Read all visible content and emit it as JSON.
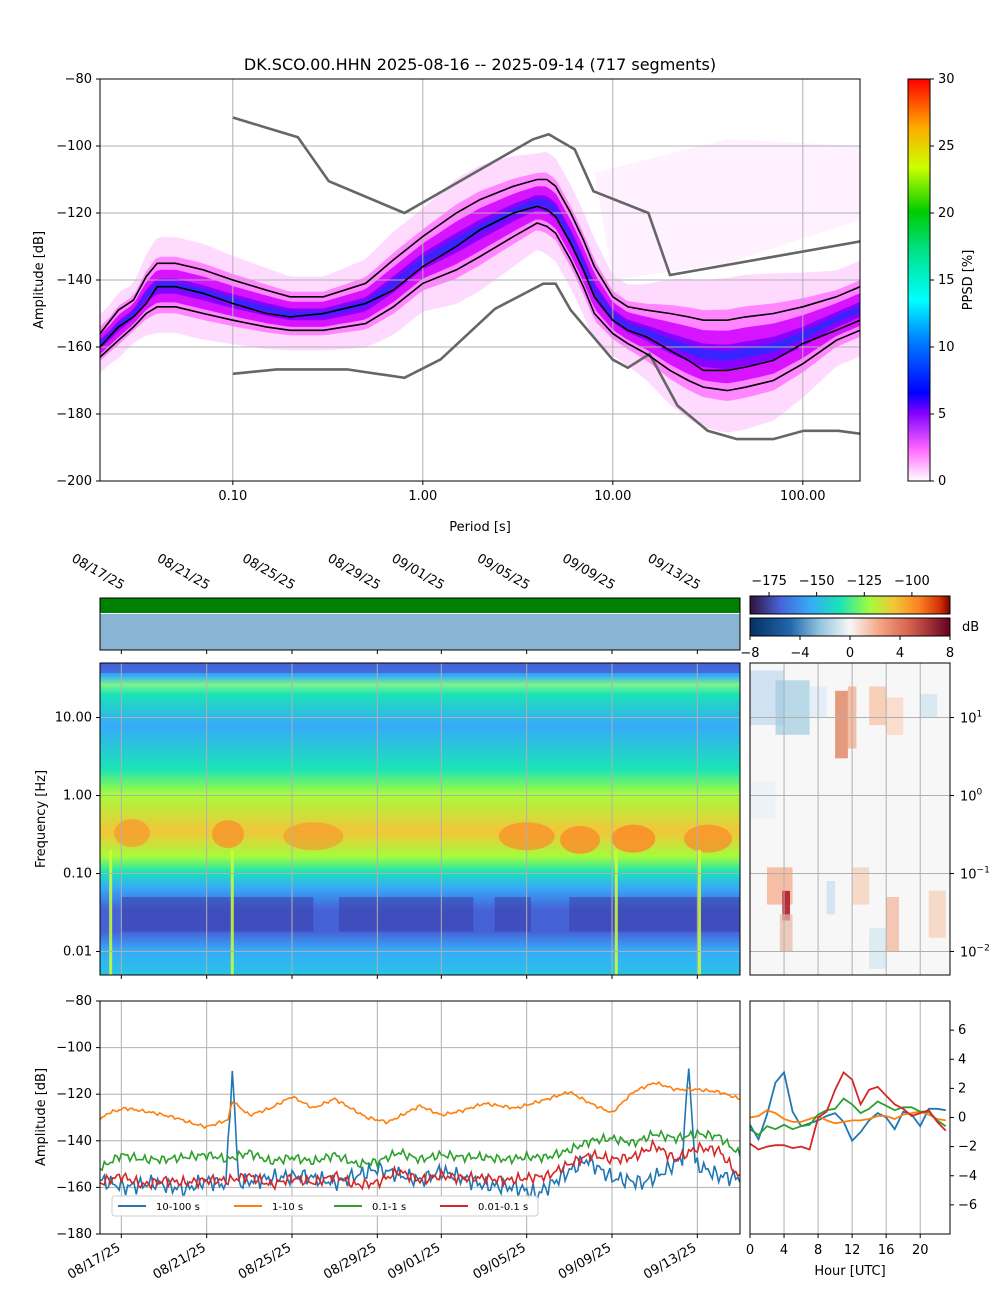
{
  "chart_data": [
    {
      "type": "heatmap",
      "title": "DK.SCO.00.HHN   2025-08-16 -- 2025-09-14  (717 segments)",
      "xlabel": "Period [s]",
      "ylabel": "Amplitude [dB]",
      "x_scale": "log",
      "xlim": [
        0.02,
        200
      ],
      "ylim": [
        -200,
        -80
      ],
      "x_tick_labels": [
        "0.10",
        "1.00",
        "10.00",
        "100.00"
      ],
      "x_ticks": [
        0.1,
        1,
        10,
        100
      ],
      "y_ticks": [
        -200,
        -180,
        -160,
        -140,
        -120,
        -100,
        -80
      ],
      "y_tick_labels": [
        "−200",
        "−180",
        "−160",
        "−140",
        "−120",
        "−100",
        "−80"
      ],
      "colorbar": {
        "label": "PPSD [%]",
        "range": [
          0,
          30
        ],
        "ticks": [
          "0",
          "5",
          "10",
          "15",
          "20",
          "25",
          "30"
        ]
      },
      "grid": true,
      "percentile_curves": {
        "x": [
          0.02,
          0.025,
          0.03,
          0.035,
          0.04,
          0.05,
          0.07,
          0.1,
          0.15,
          0.2,
          0.3,
          0.5,
          0.7,
          1,
          1.5,
          2,
          3,
          4,
          4.5,
          5,
          6,
          7,
          8,
          10,
          12,
          15,
          20,
          25,
          30,
          40,
          50,
          70,
          100,
          150,
          200
        ],
        "upper": [
          -156,
          -149,
          -146,
          -139,
          -135,
          -135,
          -137,
          -140,
          -143,
          -145,
          -145,
          -141,
          -134,
          -127,
          -120,
          -116,
          -112,
          -110,
          -110,
          -112,
          -120,
          -128,
          -136,
          -145,
          -148,
          -149,
          -150,
          -151,
          -152,
          -152,
          -151,
          -150,
          -148,
          -145,
          -142
        ],
        "median": [
          -160,
          -154,
          -151,
          -147,
          -142,
          -142,
          -144,
          -147,
          -150,
          -151,
          -150,
          -147,
          -143,
          -136,
          -130,
          -125,
          -120,
          -118,
          -119,
          -121,
          -129,
          -137,
          -145,
          -152,
          -155,
          -157,
          -161,
          -164,
          -167,
          -167,
          -166,
          -164,
          -159,
          -155,
          -152
        ],
        "lower": [
          -163,
          -158,
          -154,
          -150,
          -148,
          -148,
          -150,
          -152,
          -154,
          -155,
          -155,
          -153,
          -148,
          -141,
          -137,
          -133,
          -127,
          -123,
          -124,
          -126,
          -134,
          -142,
          -150,
          -156,
          -159,
          -162,
          -167,
          -170,
          -172,
          -173,
          -172,
          -170,
          -165,
          -158,
          -155
        ]
      },
      "noise_models": {
        "nhnm": {
          "x": [
            0.1,
            0.22,
            0.32,
            0.8,
            3.8,
            4.6,
            6.3,
            7.9,
            15.4,
            20,
            354.8
          ],
          "y": [
            -91.5,
            -97.4,
            -110.5,
            -120,
            -98,
            -96.5,
            -101,
            -113.5,
            -120,
            -138.5,
            -126
          ]
        },
        "nlnm": {
          "x": [
            0.1,
            0.17,
            0.4,
            0.8,
            1.24,
            2.4,
            4.3,
            5,
            6,
            10,
            12,
            15.6,
            21.9,
            31.6,
            45,
            70,
            101,
            154,
            328
          ],
          "y": [
            -168,
            -166.7,
            -166.7,
            -169.2,
            -163.7,
            -148.6,
            -141.1,
            -141.1,
            -149,
            -163.8,
            -166.2,
            -162.1,
            -177.5,
            -185,
            -187.5,
            -187.5,
            -185,
            -185,
            -187.5
          ]
        }
      }
    },
    {
      "type": "heatmap",
      "name": "spectrogram",
      "ylabel": "Frequency [Hz]",
      "y_scale": "log",
      "ylim": [
        0.005,
        50
      ],
      "y_tick_labels": [
        "0.01",
        "0.10",
        "1.00",
        "10.00"
      ],
      "y_ticks": [
        0.01,
        0.1,
        1,
        10
      ],
      "x_tick_labels": [
        "08/17/25",
        "08/21/25",
        "08/25/25",
        "08/29/25",
        "09/01/25",
        "09/05/25",
        "09/09/25",
        "09/13/25"
      ],
      "x_ticks": [
        "2025-08-17",
        "2025-08-21",
        "2025-08-25",
        "2025-08-29",
        "2025-09-01",
        "2025-09-05",
        "2025-09-09",
        "2025-09-13"
      ],
      "xlim": [
        "2025-08-16",
        "2025-09-15"
      ],
      "colorbar": {
        "range": [
          -185,
          -80
        ],
        "ticks": [
          "−175",
          "−150",
          "−125",
          "−100"
        ]
      },
      "data_coverage": "full"
    },
    {
      "type": "heatmap",
      "name": "diurnal deviation",
      "y_scale": "log",
      "y_tick_labels": [
        "10<tspan baseline-shift=\"super\" font-size=\"9\">−2</tspan>",
        "10<tspan baseline-shift=\"super\" font-size=\"9\">−1</tspan>",
        "10<tspan baseline-shift=\"super\" font-size=\"9\">0</tspan>",
        "10<tspan baseline-shift=\"super\" font-size=\"9\">1</tspan>"
      ],
      "y_tick_base": [
        "10",
        "10",
        "10",
        "10"
      ],
      "y_tick_exp": [
        "−2",
        "−1",
        "0",
        "1"
      ],
      "colorbar": {
        "label": "dB",
        "range": [
          -8,
          8
        ],
        "ticks": [
          "−8",
          "−4",
          "0",
          "4",
          "8"
        ]
      }
    },
    {
      "type": "line",
      "name": "band amplitudes",
      "ylabel": "Amplitude [dB]",
      "ylim": [
        -180,
        -80
      ],
      "y_ticks": [
        -180,
        -160,
        -140,
        -120,
        -100,
        -80
      ],
      "y_tick_labels": [
        "−180",
        "−160",
        "−140",
        "−120",
        "−100",
        "−80"
      ],
      "x_tick_labels": [
        "08/17/25",
        "08/21/25",
        "08/25/25",
        "08/29/25",
        "09/01/25",
        "09/05/25",
        "09/09/25",
        "09/13/25"
      ],
      "xlim": [
        "2025-08-16",
        "2025-09-15"
      ],
      "legend": "bottom-left",
      "series": [
        {
          "name": "10-100 s",
          "color": "#1f77b4",
          "days": [
            0,
            1.2,
            2.5,
            4,
            5,
            5.9,
            6.2,
            6.5,
            8,
            9.5,
            11,
            13,
            15,
            16,
            18,
            19.5,
            20.5,
            22,
            22.8,
            24,
            25.5,
            26.5,
            27.3,
            27.6,
            27.9,
            29,
            30
          ],
          "values": [
            -157,
            -160,
            -158,
            -161,
            -157,
            -159,
            -110,
            -158,
            -156,
            -155,
            -158,
            -152,
            -157,
            -153,
            -159,
            -160,
            -163,
            -153,
            -148,
            -156,
            -158,
            -153,
            -147,
            -109,
            -150,
            -155,
            -156
          ]
        },
        {
          "name": "1-10 s",
          "color": "#ff7f0e",
          "days": [
            0,
            0.4,
            1.2,
            2.5,
            3.5,
            4.5,
            5,
            6,
            6.2,
            7,
            8,
            9,
            10,
            11,
            12.5,
            13.5,
            15,
            16,
            17,
            18,
            19.5,
            21,
            22,
            23,
            24,
            25,
            26,
            27,
            28,
            29,
            30
          ],
          "values": [
            -131,
            -128,
            -126,
            -128,
            -130,
            -133,
            -134,
            -131,
            -123,
            -129,
            -126,
            -121,
            -126,
            -122,
            -130,
            -132,
            -125,
            -129,
            -127,
            -124,
            -126,
            -122,
            -119,
            -124,
            -128,
            -119,
            -115,
            -118,
            -118,
            -119,
            -122
          ]
        },
        {
          "name": "0.1-1 s",
          "color": "#2ca02c",
          "days": [
            0,
            1,
            2,
            3,
            4,
            5,
            6,
            7,
            8,
            9,
            10,
            11,
            12,
            13,
            14,
            15,
            16,
            17,
            18,
            19,
            20,
            21,
            22,
            23,
            24,
            25,
            26,
            27,
            28,
            29,
            30
          ],
          "values": [
            -152,
            -146,
            -148,
            -148,
            -147,
            -146,
            -148,
            -145,
            -149,
            -147,
            -149,
            -146,
            -150,
            -149,
            -145,
            -148,
            -146,
            -147,
            -147,
            -148,
            -147,
            -147,
            -144,
            -140,
            -139,
            -141,
            -137,
            -139,
            -137,
            -138,
            -146
          ]
        },
        {
          "name": "0.01-0.1 s",
          "color": "#d62728",
          "days": [
            0,
            1,
            2,
            3,
            4,
            5,
            6,
            7,
            8,
            9,
            10,
            11,
            12,
            13,
            14,
            15,
            16,
            17,
            18,
            19,
            20,
            21,
            22,
            23,
            24,
            25,
            26,
            27,
            28,
            29,
            30
          ],
          "values": [
            -158,
            -155,
            -159,
            -157,
            -158,
            -157,
            -157,
            -155,
            -159,
            -156,
            -158,
            -155,
            -159,
            -158,
            -153,
            -157,
            -155,
            -156,
            -156,
            -157,
            -156,
            -155,
            -150,
            -146,
            -148,
            -147,
            -142,
            -148,
            -143,
            -144,
            -156
          ]
        }
      ]
    },
    {
      "type": "line",
      "name": "diurnal band deviation",
      "xlabel": "Hour [UTC]",
      "x_ticks": [
        0,
        4,
        8,
        12,
        16,
        20
      ],
      "x_tick_labels": [
        "0",
        "4",
        "8",
        "12",
        "16",
        "20"
      ],
      "xlim": [
        0,
        23.5
      ],
      "ylim": [
        -8,
        8
      ],
      "y_ticks": [
        -6,
        -4,
        -2,
        0,
        2,
        4,
        6
      ],
      "y_tick_labels": [
        "−6",
        "−4",
        "−2",
        "0",
        "2",
        "4",
        "6"
      ],
      "hours": [
        0,
        1,
        2,
        3,
        4,
        5,
        6,
        7,
        8,
        9,
        10,
        11,
        12,
        13,
        14,
        15,
        16,
        17,
        18,
        19,
        20,
        21,
        22,
        23
      ],
      "series": [
        {
          "name": "10-100 s",
          "color": "#1f77b4",
          "values": [
            -0.5,
            -1.5,
            0.2,
            2.4,
            3.1,
            0.4,
            -0.6,
            -0.4,
            -0.2,
            0.1,
            0.3,
            -0.3,
            -1.6,
            -1.0,
            -0.2,
            0.3,
            0.0,
            -0.8,
            0.4,
            0.2,
            -0.6,
            0.6,
            0.6,
            0.5
          ]
        },
        {
          "name": "1-10 s",
          "color": "#ff7f0e",
          "values": [
            0.0,
            0.1,
            0.5,
            0.3,
            -0.1,
            -0.3,
            -0.3,
            -0.1,
            0.1,
            -0.2,
            -0.4,
            -0.3,
            -0.2,
            -0.2,
            -0.1,
            0.1,
            0.1,
            -0.1,
            0.2,
            0.3,
            0.4,
            0.2,
            -0.1,
            -0.2
          ]
        },
        {
          "name": "0.1-1 s",
          "color": "#2ca02c",
          "values": [
            -0.8,
            -1.2,
            -0.6,
            -0.8,
            -0.5,
            -0.8,
            -0.6,
            -0.5,
            0.2,
            0.5,
            0.6,
            1.3,
            0.9,
            0.3,
            0.6,
            1.1,
            0.8,
            0.5,
            0.7,
            0.7,
            0.4,
            0.4,
            -0.2,
            -0.6
          ]
        },
        {
          "name": "0.01-0.1 s",
          "color": "#d62728",
          "values": [
            -1.8,
            -2.2,
            -2.0,
            -1.9,
            -1.9,
            -2.1,
            -2.0,
            -2.2,
            0.0,
            0.4,
            1.9,
            3.1,
            2.6,
            0.9,
            1.9,
            2.1,
            1.5,
            0.9,
            0.6,
            0.1,
            0.3,
            0.5,
            -0.3,
            -0.9
          ]
        }
      ]
    }
  ],
  "colors": {
    "nhnm_nlnm": "#666666",
    "percentiles": "#000000",
    "coverage_top": "#008000",
    "coverage_bottom": "#8ab4d4",
    "grid": "#b0b0b0"
  }
}
